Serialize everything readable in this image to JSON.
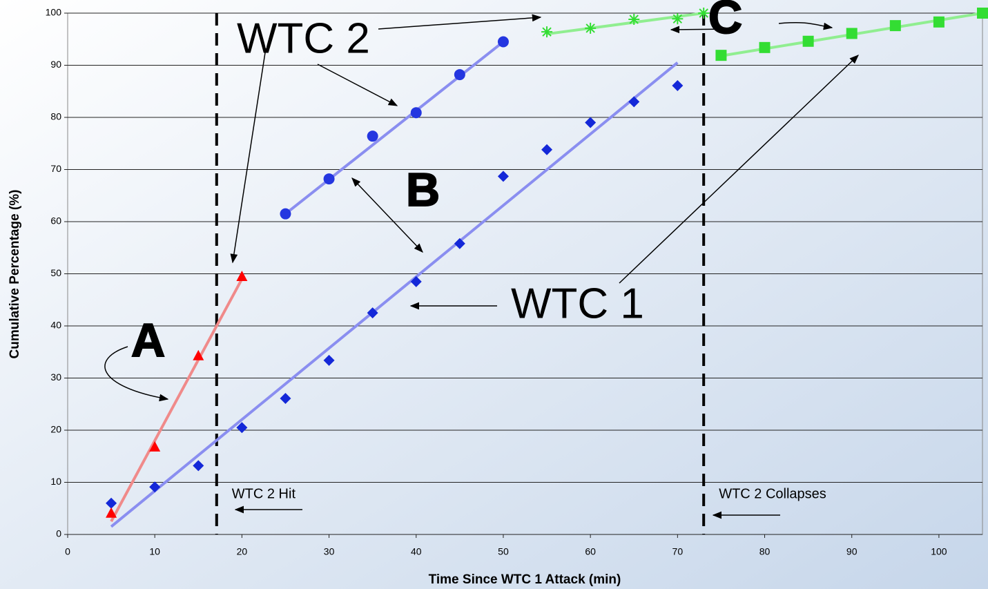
{
  "chart_data": {
    "type": "scatter",
    "x_label": "Time Since WTC 1 Attack (min)",
    "y_label": "Cumulative Percentage (%)",
    "xlim": [
      0,
      105
    ],
    "ylim": [
      0,
      100
    ],
    "xticks": [
      0,
      10,
      20,
      30,
      40,
      50,
      60,
      70,
      80,
      90,
      100
    ],
    "yticks": [
      0,
      10,
      20,
      30,
      40,
      50,
      60,
      70,
      80,
      90,
      100
    ],
    "grid": true,
    "series": [
      {
        "marker": "diamond",
        "color": "#1428d8",
        "line_color": "#8a8ef0",
        "x": [
          5,
          10,
          15,
          20,
          25,
          30,
          35,
          40,
          45,
          50,
          55,
          60,
          65,
          70
        ],
        "values": [
          6,
          9.1,
          13.2,
          20.5,
          26.1,
          33.4,
          42.5,
          48.5,
          55.8,
          68.7,
          73.8,
          79,
          83,
          86.1
        ],
        "trend": {
          "x": [
            5,
            70
          ],
          "values": [
            1.5,
            90.5
          ]
        }
      },
      {
        "marker": "circle",
        "color": "#2436e0",
        "line_color": "#8a8ef0",
        "x": [
          25,
          30,
          35,
          40,
          45,
          50
        ],
        "values": [
          61.5,
          68.2,
          76.4,
          80.9,
          88.2,
          94.5
        ],
        "trend": {
          "x": [
            25,
            50
          ],
          "values": [
            61.5,
            94.5
          ]
        }
      },
      {
        "marker": "triangle",
        "color": "#ff0000",
        "line_color": "#f08a8a",
        "x": [
          5,
          10,
          15,
          20
        ],
        "values": [
          4,
          16.7,
          34.2,
          49.4
        ],
        "trend": {
          "x": [
            5,
            20
          ],
          "values": [
            2.5,
            49
          ]
        }
      },
      {
        "marker": "asterisk",
        "color": "#33dd33",
        "line_color": "#90ee90",
        "x": [
          55,
          60,
          65,
          70,
          73
        ],
        "values": [
          96.4,
          97.1,
          98.8,
          98.9,
          100
        ],
        "trend": {
          "x": [
            55,
            73
          ],
          "values": [
            96,
            100
          ]
        }
      },
      {
        "marker": "square",
        "color": "#33dd33",
        "line_color": "#90ee90",
        "x": [
          75,
          80,
          85,
          90,
          95,
          100,
          105
        ],
        "values": [
          91.9,
          93.4,
          94.6,
          96.1,
          97.6,
          98.3,
          100
        ],
        "trend": {
          "x": [
            75,
            105
          ],
          "values": [
            91.8,
            100
          ]
        }
      }
    ],
    "vlines": [
      {
        "x": 17.1,
        "label": "WTC 2 Hit"
      },
      {
        "x": 73,
        "label": "WTC 2 Collapses"
      }
    ],
    "annotations": [
      "WTC 2",
      "WTC 1",
      "A",
      "B",
      "C"
    ]
  }
}
